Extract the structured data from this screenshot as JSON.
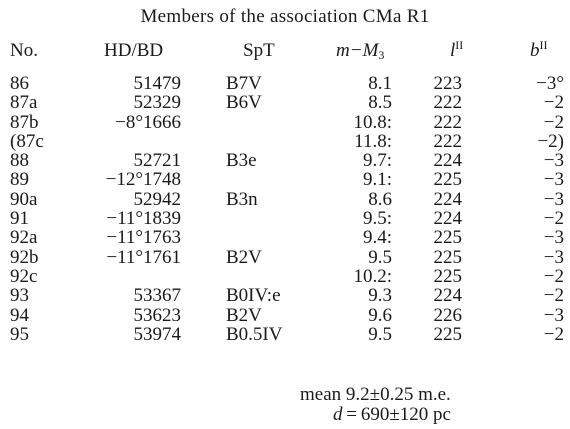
{
  "title": "Members of the association CMa R1",
  "headers": {
    "no": "No.",
    "hd_bd": "HD/BD",
    "spt": "SpT",
    "mag_m": "m",
    "mag_sep": "−",
    "mag_M": "M",
    "mag_sub": "3",
    "l_base": "l",
    "l_sup": "II",
    "b_base": "b",
    "b_sup": "II"
  },
  "rows": [
    {
      "no": "86",
      "hd": "51479",
      "spt": "B7V",
      "mag": "8.1",
      "l": "223",
      "b": "−3°"
    },
    {
      "no": "87a",
      "hd": "52329",
      "spt": "B6V",
      "mag": "8.5",
      "l": "222",
      "b": "−2"
    },
    {
      "no": "87b",
      "hd": "−8°1666",
      "spt": "",
      "mag": "10.8:",
      "l": "222",
      "b": "−2"
    },
    {
      "no": "(87c",
      "hd": "",
      "spt": "",
      "mag": "11.8:",
      "l": "222",
      "b": "−2)"
    },
    {
      "no": "88",
      "hd": "52721",
      "spt": "B3e",
      "mag": "9.7:",
      "l": "224",
      "b": "−3"
    },
    {
      "no": "89",
      "hd": "−12°1748",
      "spt": "",
      "mag": "9.1:",
      "l": "225",
      "b": "−3"
    },
    {
      "no": "90a",
      "hd": "52942",
      "spt": "B3n",
      "mag": "8.6",
      "l": "224",
      "b": "−3"
    },
    {
      "no": "91",
      "hd": "−11°1839",
      "spt": "",
      "mag": "9.5:",
      "l": "224",
      "b": "−2"
    },
    {
      "no": "92a",
      "hd": "−11°1763",
      "spt": "",
      "mag": "9.4:",
      "l": "225",
      "b": "−3"
    },
    {
      "no": "92b",
      "hd": "−11°1761",
      "spt": "B2V",
      "mag": "9.5",
      "l": "225",
      "b": "−3"
    },
    {
      "no": "92c",
      "hd": "",
      "spt": "",
      "mag": "10.2:",
      "l": "225",
      "b": "−2"
    },
    {
      "no": "93",
      "hd": "53367",
      "spt": "B0IV:e",
      "mag": "9.3",
      "l": "224",
      "b": "−2"
    },
    {
      "no": "94",
      "hd": "53623",
      "spt": "B2V",
      "mag": "9.6",
      "l": "226",
      "b": "−3"
    },
    {
      "no": "95",
      "hd": "53974",
      "spt": "B0.5IV",
      "mag": "9.5",
      "l": "225",
      "b": "−2"
    }
  ],
  "footer": {
    "mean": "mean 9.2±0.25 m.e.",
    "distance_symbol": "d",
    "distance": " = 690±120 pc"
  }
}
